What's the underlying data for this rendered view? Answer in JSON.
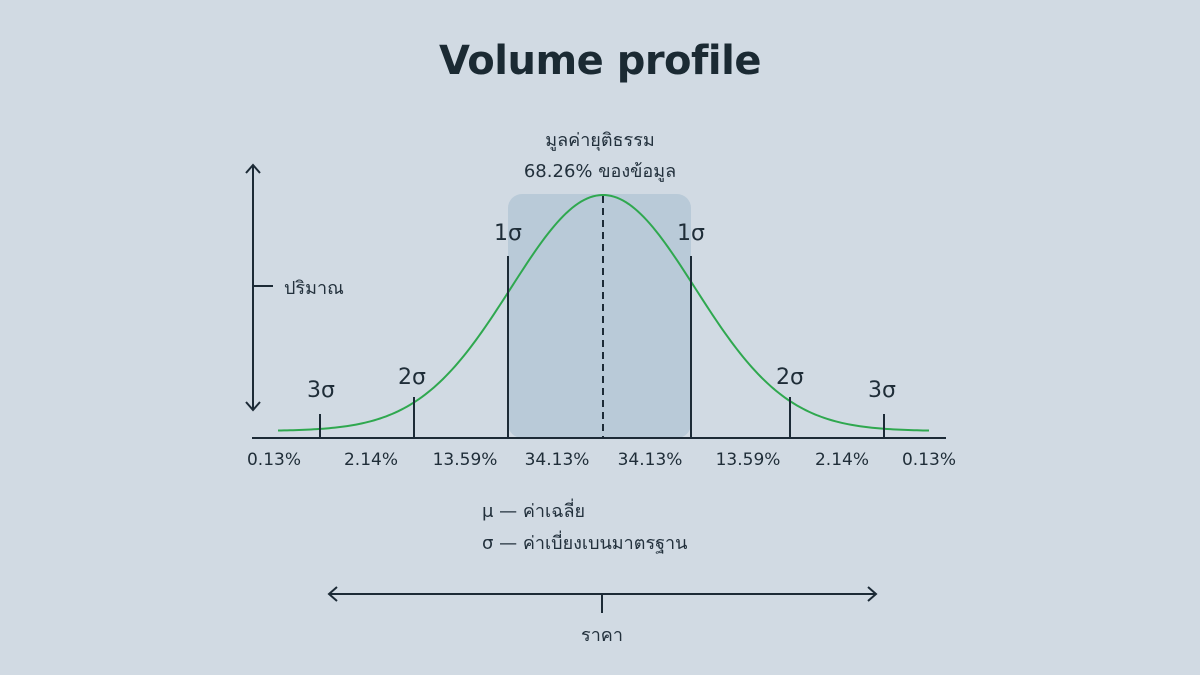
{
  "title": "Volume profile",
  "fair_value": {
    "line1": "มูลค่ายุติธรรม",
    "line2": "68.26% ของข้อมูล"
  },
  "y_axis_label": "ปริมาณ",
  "x_axis_label": "ราคา",
  "sigma_labels": {
    "left_3": "3σ",
    "left_2": "2σ",
    "left_1": "1σ",
    "right_1": "1σ",
    "right_2": "2σ",
    "right_3": "3σ"
  },
  "percent_labels": [
    "0.13%",
    "2.14%",
    "13.59%",
    "34.13%",
    "34.13%",
    "13.59%",
    "2.14%",
    "0.13%"
  ],
  "legend": {
    "mu": "μ — ค่าเฉลี่ย",
    "sigma": "σ — ค่าเบี่ยงเบนมาตรฐาน"
  },
  "colors": {
    "background": "#d1dae3",
    "curve": "#2fa84f",
    "fair_value_band": "#b9cad8",
    "lines": "#1c2a36"
  }
}
